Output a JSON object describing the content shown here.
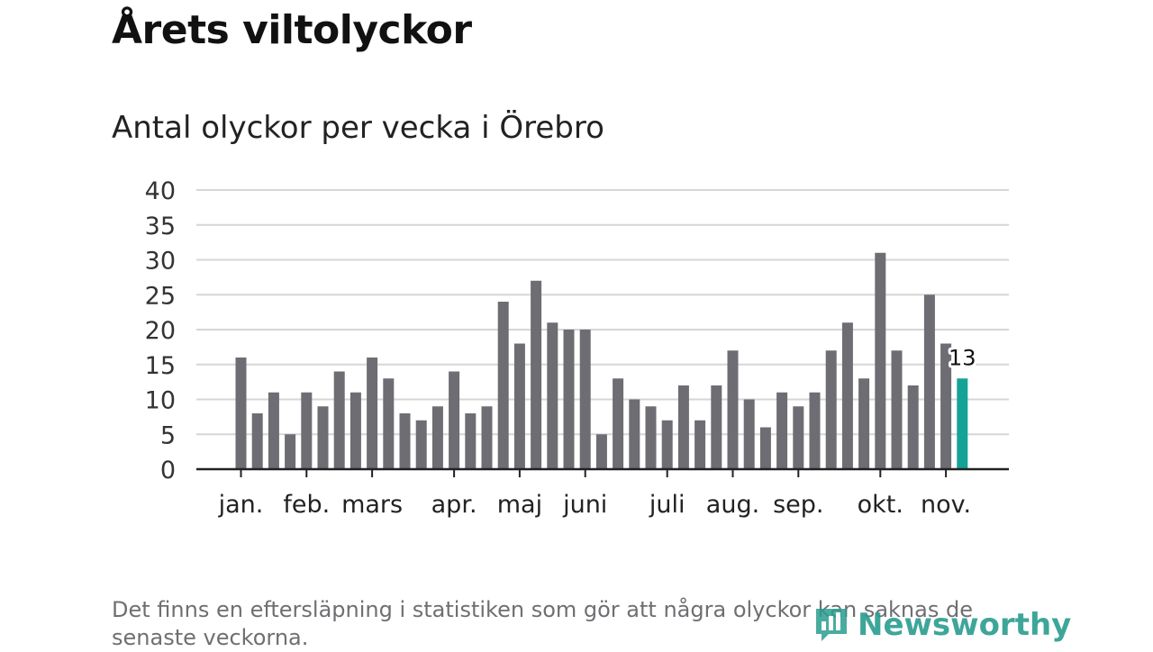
{
  "header": {
    "title": "Årets viltolyckor",
    "subtitle": "Antal olyckor per vecka i Örebro"
  },
  "footer": {
    "note": "Det finns en eftersläpning i statistiken som gör att några olyckor kan saknas de senaste veckorna.",
    "brand": "Newsworthy"
  },
  "colors": {
    "bar": "#6e6d73",
    "highlight": "#14a396",
    "grid": "#d6d6d6",
    "axis": "#222222",
    "brand": "#2a9d8f"
  },
  "chart_data": {
    "type": "bar",
    "title": "Antal olyckor per vecka i Örebro",
    "xlabel": "",
    "ylabel": "",
    "ylim": [
      0,
      40
    ],
    "yticks": [
      0,
      5,
      10,
      15,
      20,
      25,
      30,
      35,
      40
    ],
    "grid": true,
    "values": [
      16,
      8,
      11,
      5,
      11,
      9,
      14,
      11,
      16,
      13,
      8,
      7,
      9,
      14,
      8,
      9,
      24,
      18,
      27,
      21,
      20,
      20,
      5,
      13,
      10,
      9,
      7,
      12,
      7,
      12,
      17,
      10,
      6,
      11,
      9,
      11,
      17,
      21,
      13,
      31,
      17,
      12,
      25,
      18,
      13
    ],
    "highlight_index": 44,
    "highlight_label": "13",
    "months": [
      {
        "label": "jan.",
        "index": 0
      },
      {
        "label": "feb.",
        "index": 4
      },
      {
        "label": "mars",
        "index": 8
      },
      {
        "label": "apr.",
        "index": 13
      },
      {
        "label": "maj",
        "index": 17
      },
      {
        "label": "juni",
        "index": 21
      },
      {
        "label": "juli",
        "index": 26
      },
      {
        "label": "aug.",
        "index": 30
      },
      {
        "label": "sep.",
        "index": 34
      },
      {
        "label": "okt.",
        "index": 39
      },
      {
        "label": "nov.",
        "index": 43
      }
    ]
  }
}
